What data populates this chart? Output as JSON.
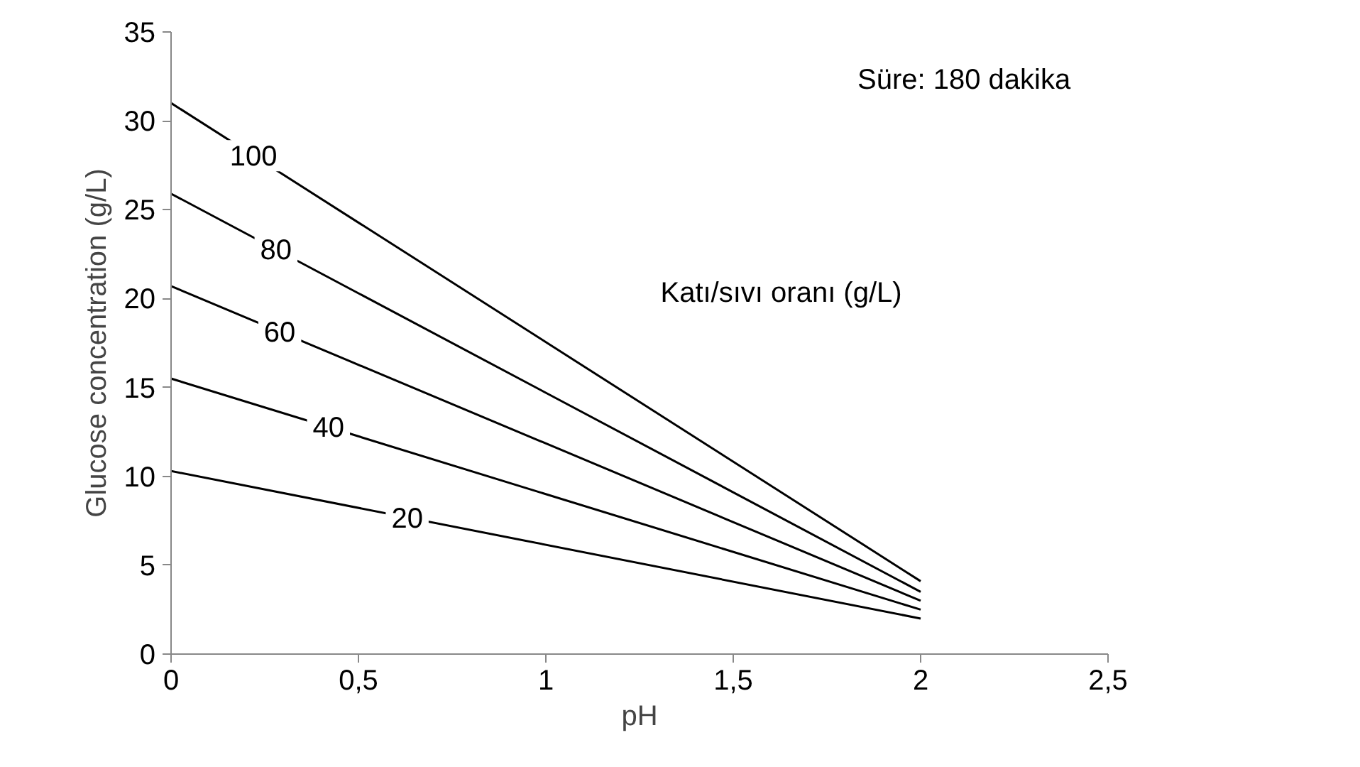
{
  "chart_data": {
    "type": "line",
    "xlabel": "pH",
    "ylabel": "Glucose concentration (g/L)",
    "x": [
      0,
      2
    ],
    "series": [
      {
        "name": "100",
        "color": "#000000",
        "values": [
          31.0,
          4.1
        ]
      },
      {
        "name": "80",
        "color": "#000000",
        "values": [
          25.9,
          3.5
        ]
      },
      {
        "name": "60",
        "color": "#000000",
        "values": [
          20.7,
          3.0
        ]
      },
      {
        "name": "40",
        "color": "#000000",
        "values": [
          15.5,
          2.5
        ]
      },
      {
        "name": "20",
        "color": "#000000",
        "values": [
          10.3,
          2.0
        ]
      }
    ],
    "xlim": [
      0,
      2.5
    ],
    "xticks": [
      0,
      {
        "value": 0.5,
        "label": "0,5"
      },
      1,
      {
        "value": 1.5,
        "label": "1,5"
      },
      2,
      {
        "value": 2.5,
        "label": "2,5"
      }
    ],
    "ylim": [
      0,
      35
    ],
    "yticks": [
      0,
      5,
      10,
      15,
      20,
      25,
      30,
      35
    ],
    "annotations": [
      "Süre: 180 dakika",
      "Katı/sıvı oranı (g/L)"
    ],
    "grid": false,
    "legend": false,
    "marker": "none",
    "line_style": "solid"
  }
}
